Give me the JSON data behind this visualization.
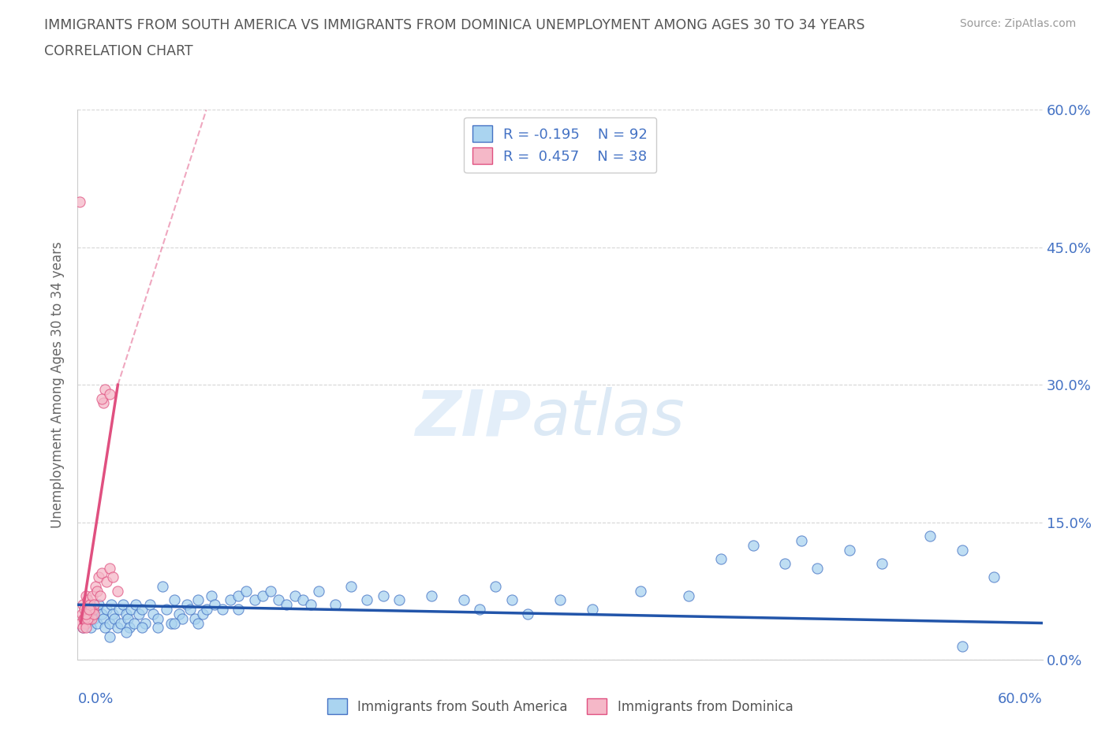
{
  "title_line1": "IMMIGRANTS FROM SOUTH AMERICA VS IMMIGRANTS FROM DOMINICA UNEMPLOYMENT AMONG AGES 30 TO 34 YEARS",
  "title_line2": "CORRELATION CHART",
  "source": "Source: ZipAtlas.com",
  "ylabel": "Unemployment Among Ages 30 to 34 years",
  "ytick_values": [
    0,
    15,
    30,
    45,
    60
  ],
  "xlim": [
    0,
    60
  ],
  "ylim": [
    0,
    60
  ],
  "watermark_zip": "ZIP",
  "watermark_atlas": "atlas",
  "legend_1_label": "Immigrants from South America",
  "legend_2_label": "Immigrants from Dominica",
  "R_blue": -0.195,
  "N_blue": 92,
  "R_pink": 0.457,
  "N_pink": 38,
  "blue_fill": "#aad4f0",
  "blue_edge": "#4472c4",
  "pink_fill": "#f5b8c8",
  "pink_edge": "#e05080",
  "pink_line_color": "#e05080",
  "blue_line_color": "#2255aa",
  "title_color": "#555555",
  "axis_label_color": "#4472c4",
  "blue_scatter_x": [
    0.3,
    0.5,
    0.7,
    0.8,
    1.0,
    1.1,
    1.2,
    1.3,
    1.5,
    1.6,
    1.7,
    1.8,
    2.0,
    2.1,
    2.2,
    2.3,
    2.5,
    2.6,
    2.7,
    2.8,
    3.0,
    3.1,
    3.2,
    3.3,
    3.5,
    3.6,
    3.8,
    4.0,
    4.2,
    4.5,
    4.7,
    5.0,
    5.3,
    5.5,
    5.8,
    6.0,
    6.3,
    6.5,
    6.8,
    7.0,
    7.3,
    7.5,
    7.8,
    8.0,
    8.3,
    8.5,
    9.0,
    9.5,
    10.0,
    10.5,
    11.0,
    11.5,
    12.0,
    12.5,
    13.0,
    13.5,
    14.0,
    14.5,
    15.0,
    16.0,
    17.0,
    18.0,
    19.0,
    20.0,
    22.0,
    24.0,
    25.0,
    26.0,
    27.0,
    28.0,
    30.0,
    32.0,
    35.0,
    38.0,
    40.0,
    42.0,
    44.0,
    46.0,
    48.0,
    50.0,
    53.0,
    55.0,
    57.0,
    2.0,
    3.0,
    4.0,
    5.0,
    6.0,
    7.5,
    10.0,
    45.0,
    55.0
  ],
  "blue_scatter_y": [
    3.5,
    4.0,
    5.0,
    3.5,
    4.5,
    5.5,
    4.0,
    6.0,
    5.0,
    4.5,
    3.5,
    5.5,
    4.0,
    6.0,
    5.0,
    4.5,
    3.5,
    5.5,
    4.0,
    6.0,
    5.0,
    4.5,
    3.5,
    5.5,
    4.0,
    6.0,
    5.0,
    5.5,
    4.0,
    6.0,
    5.0,
    4.5,
    8.0,
    5.5,
    4.0,
    6.5,
    5.0,
    4.5,
    6.0,
    5.5,
    4.5,
    6.5,
    5.0,
    5.5,
    7.0,
    6.0,
    5.5,
    6.5,
    7.0,
    7.5,
    6.5,
    7.0,
    7.5,
    6.5,
    6.0,
    7.0,
    6.5,
    6.0,
    7.5,
    6.0,
    8.0,
    6.5,
    7.0,
    6.5,
    7.0,
    6.5,
    5.5,
    8.0,
    6.5,
    5.0,
    6.5,
    5.5,
    7.5,
    7.0,
    11.0,
    12.5,
    10.5,
    10.0,
    12.0,
    10.5,
    13.5,
    12.0,
    9.0,
    2.5,
    3.0,
    3.5,
    3.5,
    4.0,
    4.0,
    5.5,
    13.0,
    1.5
  ],
  "pink_scatter_x": [
    0.2,
    0.25,
    0.3,
    0.35,
    0.4,
    0.45,
    0.5,
    0.55,
    0.6,
    0.65,
    0.7,
    0.75,
    0.8,
    0.85,
    0.9,
    0.95,
    1.0,
    1.1,
    1.2,
    1.3,
    1.4,
    1.5,
    1.6,
    1.7,
    1.8,
    2.0,
    2.2,
    2.5,
    0.3,
    0.4,
    0.5,
    0.6,
    0.8,
    1.0,
    1.5,
    2.0,
    0.5,
    0.7
  ],
  "pink_scatter_y": [
    4.0,
    5.0,
    6.0,
    4.5,
    5.5,
    4.0,
    7.0,
    5.0,
    6.5,
    5.0,
    4.5,
    6.0,
    5.5,
    4.5,
    7.0,
    5.5,
    6.0,
    8.0,
    7.5,
    9.0,
    7.0,
    9.5,
    28.0,
    29.5,
    8.5,
    10.0,
    9.0,
    7.5,
    3.5,
    4.5,
    3.5,
    4.5,
    5.5,
    5.0,
    28.5,
    29.0,
    5.0,
    5.5
  ],
  "pink_outlier_x": 0.15,
  "pink_outlier_y": 50.0,
  "blue_trend_x0": 0.0,
  "blue_trend_x1": 60.0,
  "blue_trend_y0": 6.0,
  "blue_trend_y1": 4.0,
  "pink_solid_x0": 0.2,
  "pink_solid_x1": 2.5,
  "pink_solid_y0": 4.0,
  "pink_solid_y1": 30.0,
  "pink_dash_x0": 2.5,
  "pink_dash_x1": 8.0,
  "pink_dash_y0": 30.0,
  "pink_dash_y1": 60.0
}
